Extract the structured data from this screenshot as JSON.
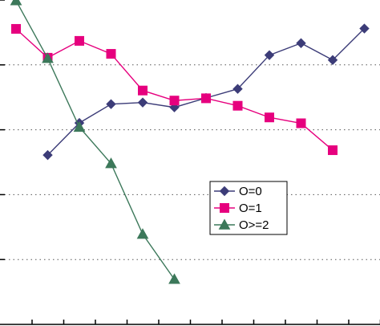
{
  "chart_data": {
    "type": "line",
    "x": [
      1,
      2,
      3,
      4,
      5,
      6,
      7,
      8,
      9,
      10,
      11,
      12
    ],
    "ylim": [
      0,
      1
    ],
    "grid": true,
    "legend_position": "center-right",
    "series": [
      {
        "name": "O=0",
        "color": "#3c3c78",
        "marker": "diamond",
        "x": [
          2,
          3,
          4,
          5,
          6,
          7,
          8,
          9,
          10,
          11,
          12
        ],
        "values": [
          0.522,
          0.621,
          0.679,
          0.684,
          0.669,
          0.698,
          0.726,
          0.83,
          0.867,
          0.815,
          0.912
        ]
      },
      {
        "name": "O=1",
        "color": "#e6007e",
        "marker": "square",
        "x": [
          1,
          2,
          3,
          4,
          5,
          6,
          7,
          8,
          9,
          10,
          11
        ],
        "values": [
          0.911,
          0.822,
          0.874,
          0.834,
          0.721,
          0.69,
          0.697,
          0.674,
          0.638,
          0.62,
          0.537
        ]
      },
      {
        "name": "O>=2",
        "color": "#3c785a",
        "marker": "triangle",
        "x": [
          1,
          2,
          3,
          4,
          5,
          6
        ],
        "values": [
          0.998,
          0.82,
          0.608,
          0.496,
          0.278,
          0.139
        ]
      }
    ]
  }
}
